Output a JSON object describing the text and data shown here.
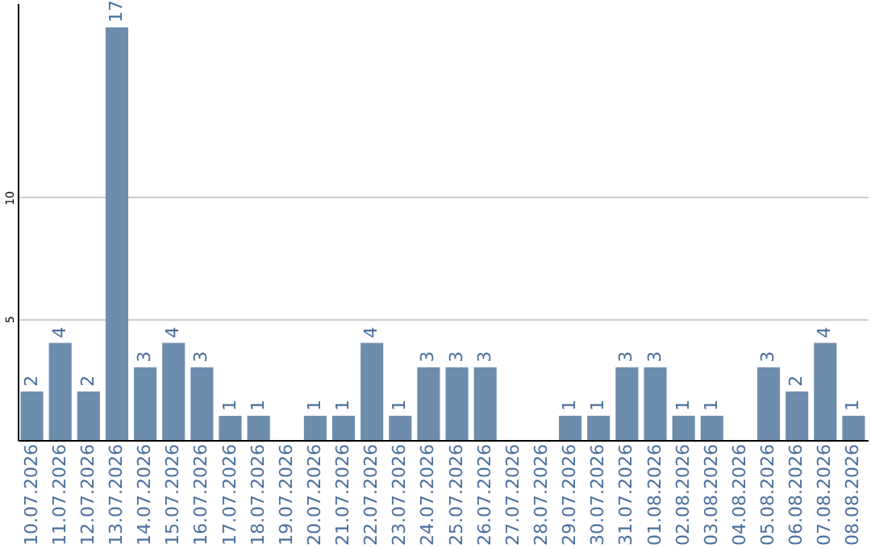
{
  "chart_data": {
    "type": "bar",
    "categories": [
      "10.07.2026",
      "11.07.2026",
      "12.07.2026",
      "13.07.2026",
      "14.07.2026",
      "15.07.2026",
      "16.07.2026",
      "17.07.2026",
      "18.07.2026",
      "19.07.2026",
      "20.07.2026",
      "21.07.2026",
      "22.07.2026",
      "23.07.2026",
      "24.07.2026",
      "25.07.2026",
      "26.07.2026",
      "27.07.2026",
      "28.07.2026",
      "29.07.2026",
      "30.07.2026",
      "31.07.2026",
      "01.08.2026",
      "02.08.2026",
      "03.08.2026",
      "04.08.2026",
      "05.08.2026",
      "06.08.2026",
      "07.08.2026",
      "08.08.2026"
    ],
    "values": [
      2,
      4,
      2,
      17,
      3,
      4,
      3,
      1,
      1,
      0,
      1,
      1,
      4,
      1,
      3,
      3,
      3,
      0,
      0,
      1,
      1,
      3,
      3,
      1,
      1,
      0,
      3,
      2,
      4,
      1
    ],
    "value_labels": [
      "2",
      "4",
      "2",
      "17",
      "3",
      "4",
      "3",
      "1",
      "1",
      null,
      "1",
      "1",
      "4",
      "1",
      "3",
      "3",
      "3",
      null,
      null,
      "1",
      "1",
      "3",
      "3",
      "1",
      "1",
      null,
      "3",
      "2",
      "4",
      "1"
    ],
    "color": "#6d8dad",
    "ylim": [
      0,
      18
    ],
    "yticks": [
      5,
      10
    ],
    "grid": "y"
  }
}
